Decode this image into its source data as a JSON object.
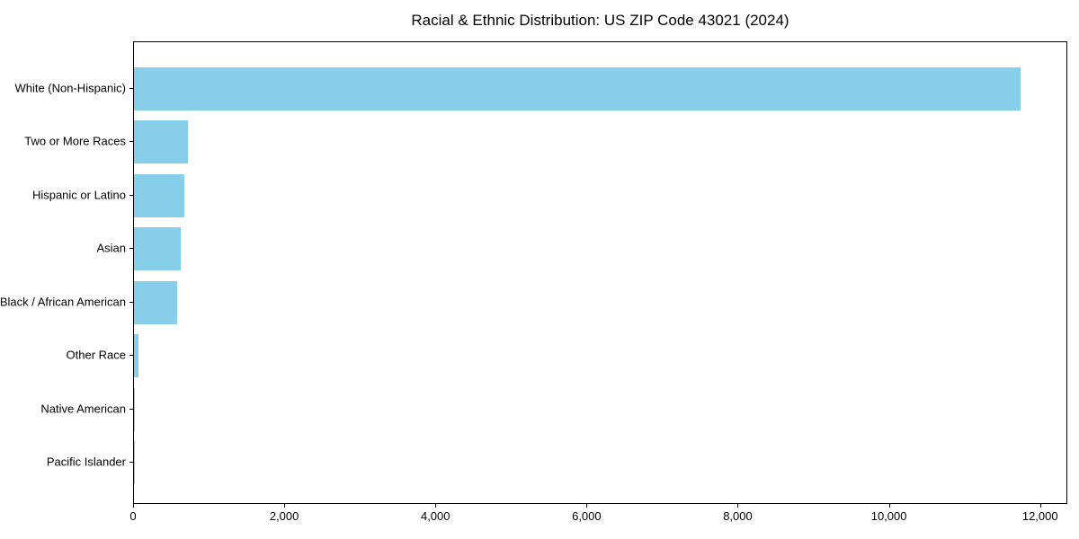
{
  "chart_data": {
    "type": "bar",
    "orientation": "horizontal",
    "title": "Racial & Ethnic Distribution: US ZIP Code 43021 (2024)",
    "categories": [
      "White (Non-Hispanic)",
      "Two or More Races",
      "Hispanic or Latino",
      "Asian",
      "Black / African American",
      "Other Race",
      "Native American",
      "Pacific Islander"
    ],
    "values": [
      11750,
      720,
      665,
      620,
      575,
      60,
      10,
      2
    ],
    "xlabel": "",
    "ylabel": "",
    "xlim": [
      0,
      12360
    ],
    "x_ticks": [
      0,
      2000,
      4000,
      6000,
      8000,
      10000,
      12000
    ],
    "x_tick_labels": [
      "0",
      "2,000",
      "4,000",
      "6,000",
      "8,000",
      "10,000",
      "12,000"
    ],
    "bar_color": "#87CEEB",
    "text_color": "#000000",
    "grid": false,
    "legend": "none"
  }
}
